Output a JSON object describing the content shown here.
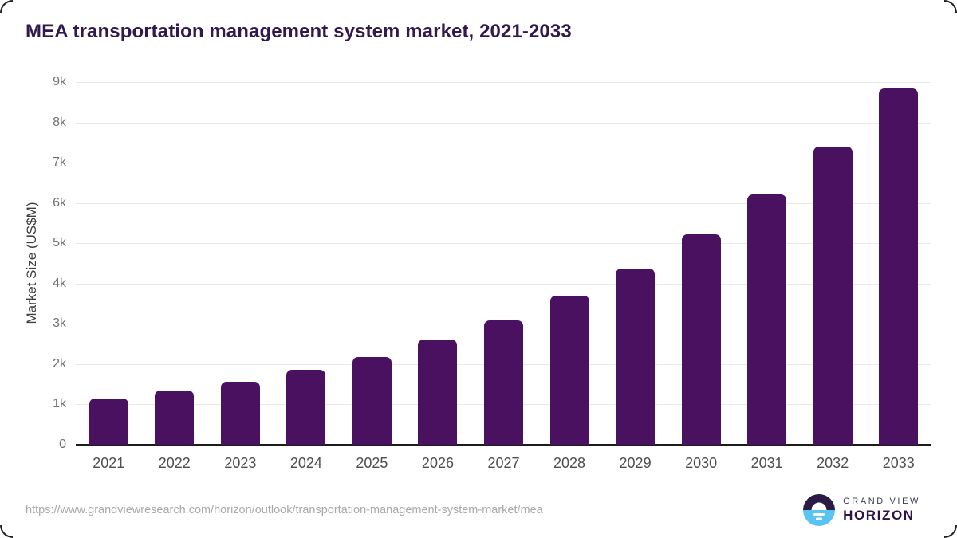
{
  "title": "MEA transportation management system market, 2021-2033",
  "footer": {
    "url": "https://www.grandviewresearch.com/horizon/outlook/transportation-management-system-market/mea",
    "brand_top": "GRAND VIEW",
    "brand_bottom": "HORIZON"
  },
  "colors": {
    "bar": "#4a1160",
    "title": "#31194d",
    "grid": "#e8e8e8",
    "axis": "#1c1c1c",
    "y_tick_label": "#707070",
    "x_tick_label": "#4f4f4f",
    "y_axis_title": "#3e3e3e",
    "url_text": "#a9a9a9",
    "logo_dark": "#2b1b47",
    "logo_blue": "#58c4f2"
  },
  "chart_data": {
    "type": "bar",
    "title": "MEA transportation management system market, 2021-2033",
    "categories": [
      "2021",
      "2022",
      "2023",
      "2024",
      "2025",
      "2026",
      "2027",
      "2028",
      "2029",
      "2030",
      "2031",
      "2032",
      "2033"
    ],
    "values": [
      1150,
      1340,
      1570,
      1860,
      2170,
      2620,
      3090,
      3690,
      4380,
      5220,
      6210,
      7390,
      8850
    ],
    "xlabel": "",
    "ylabel": "Market Size (US$M)",
    "ylim": [
      0,
      9000
    ],
    "yticks": [
      {
        "value": 0,
        "label": "0"
      },
      {
        "value": 1000,
        "label": "1k"
      },
      {
        "value": 2000,
        "label": "2k"
      },
      {
        "value": 3000,
        "label": "3k"
      },
      {
        "value": 4000,
        "label": "4k"
      },
      {
        "value": 5000,
        "label": "5k"
      },
      {
        "value": 6000,
        "label": "6k"
      },
      {
        "value": 7000,
        "label": "7k"
      },
      {
        "value": 8000,
        "label": "8k"
      },
      {
        "value": 9000,
        "label": "9k"
      }
    ],
    "grid": true,
    "legend": false,
    "bar_color": "#4a1160"
  }
}
